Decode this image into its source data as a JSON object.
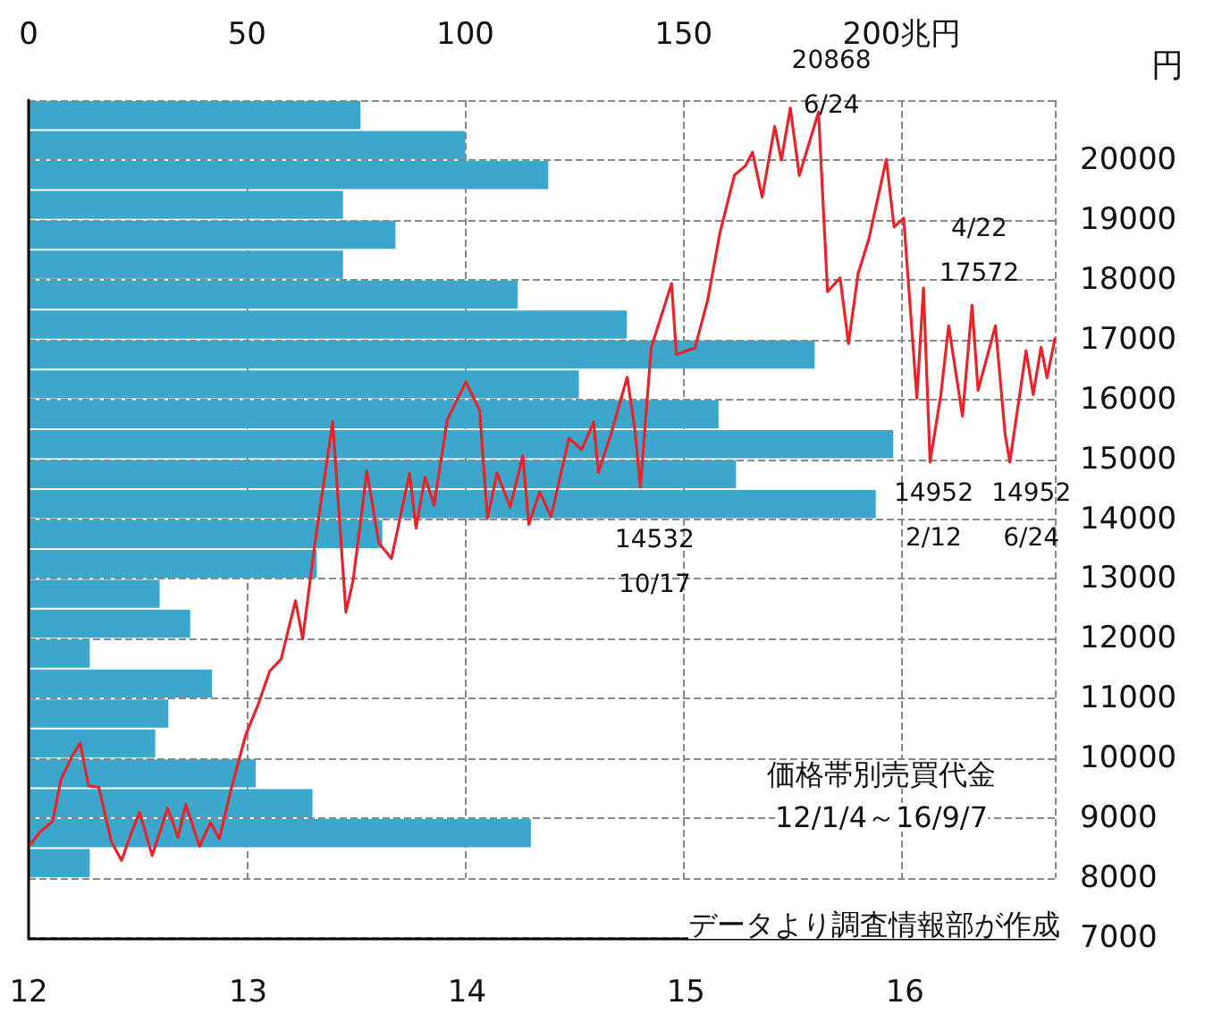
{
  "chart_data": [
    {
      "type": "bar",
      "orientation": "horizontal",
      "grid": "x",
      "tick_labels": "x",
      "categories": [
        null,
        null,
        null,
        null,
        null,
        null,
        null,
        null,
        null,
        null,
        null,
        null,
        null,
        null,
        null,
        null,
        null,
        null,
        null,
        null,
        null,
        null,
        null,
        null,
        null,
        null
      ],
      "xlim": [
        0,
        235
      ],
      "xticks": [
        0,
        50,
        100,
        150,
        {
          "value": 200,
          "label": "200兆円"
        }
      ],
      "series": [
        {
          "color": "#3ba7cc",
          "values": [
            76,
            100,
            119,
            72,
            84,
            72,
            112,
            137,
            180,
            126,
            158,
            198,
            162,
            194,
            81,
            66,
            30,
            37,
            14,
            42,
            32,
            29,
            52,
            65,
            115,
            14
          ]
        }
      ]
    },
    {
      "type": "line",
      "grid": "y",
      "marker": "none",
      "line_style": "solid",
      "ylabel": "円",
      "xlim": [
        "2012-01-01",
        "2016-09-07"
      ],
      "xticks": [
        {
          "value": "2012-01-01",
          "label": "12"
        },
        {
          "value": "2013-01-01",
          "label": "13"
        },
        {
          "value": "2014-01-01",
          "label": "14"
        },
        {
          "value": "2015-01-01",
          "label": "15"
        },
        {
          "value": "2016-01-01",
          "label": "16"
        }
      ],
      "ylim": [
        7000,
        21000
      ],
      "yticks": [
        7000,
        8000,
        9000,
        10000,
        11000,
        12000,
        13000,
        14000,
        15000,
        16000,
        17000,
        18000,
        19000,
        20000
      ],
      "series": [
        {
          "color": "#e8242a",
          "x": [
            "2012-01-04",
            "2012-01-20",
            "2012-02-10",
            "2012-02-24",
            "2012-03-14",
            "2012-03-27",
            "2012-04-10",
            "2012-04-27",
            "2012-05-18",
            "2012-06-04",
            "2012-06-20",
            "2012-07-04",
            "2012-07-25",
            "2012-08-20",
            "2012-09-06",
            "2012-09-19",
            "2012-10-12",
            "2012-10-30",
            "2012-11-14",
            "2012-12-03",
            "2012-12-28",
            "2013-01-18",
            "2013-02-06",
            "2013-02-25",
            "2013-03-21",
            "2013-04-02",
            "2013-04-22",
            "2013-05-22",
            "2013-06-13",
            "2013-06-25",
            "2013-07-18",
            "2013-08-07",
            "2013-08-28",
            "2013-09-27",
            "2013-10-08",
            "2013-10-23",
            "2013-11-07",
            "2013-11-29",
            "2013-12-30",
            "2014-01-22",
            "2014-02-04",
            "2014-02-20",
            "2014-03-14",
            "2014-04-04",
            "2014-04-14",
            "2014-05-02",
            "2014-05-21",
            "2014-06-20",
            "2014-07-11",
            "2014-07-31",
            "2014-08-08",
            "2014-08-29",
            "2014-09-25",
            "2014-10-08",
            "2014-10-17",
            "2014-11-04",
            "2014-12-08",
            "2014-12-16",
            "2015-01-16",
            "2015-02-06",
            "2015-02-27",
            "2015-03-23",
            "2015-04-10",
            "2015-04-22",
            "2015-05-08",
            "2015-05-29",
            "2015-06-09",
            "2015-06-24",
            "2015-07-09",
            "2015-08-10",
            "2015-08-25",
            "2015-09-15",
            "2015-09-29",
            "2015-10-15",
            "2015-11-02",
            "2015-12-01",
            "2015-12-14",
            "2015-12-30",
            "2016-01-21",
            "2016-02-01",
            "2016-02-12",
            "2016-03-01",
            "2016-03-14",
            "2016-04-06",
            "2016-04-22",
            "2016-05-02",
            "2016-05-31",
            "2016-06-16",
            "2016-06-24",
            "2016-07-21",
            "2016-08-02",
            "2016-08-15",
            "2016-08-25",
            "2016-09-07"
          ],
          "values": [
            8560,
            8770,
            8950,
            9650,
            10050,
            10255,
            9540,
            9520,
            8610,
            8295,
            8750,
            9100,
            8380,
            9170,
            8680,
            9230,
            8530,
            8930,
            8660,
            9460,
            10395,
            10910,
            11460,
            11660,
            12640,
            12000,
            13570,
            15627,
            12445,
            12970,
            14800,
            13600,
            13340,
            14760,
            13850,
            14700,
            14230,
            15660,
            16291,
            15820,
            14008,
            14770,
            14200,
            15060,
            13910,
            14450,
            14040,
            15350,
            15160,
            15620,
            14780,
            15420,
            16370,
            15480,
            14532,
            16860,
            17935,
            16750,
            16860,
            17650,
            18800,
            19750,
            19900,
            20130,
            19380,
            20560,
            20000,
            20868,
            19740,
            20800,
            17800,
            18030,
            16930,
            18100,
            18680,
            20010,
            18880,
            19030,
            16020,
            17860,
            14952,
            16080,
            17230,
            15720,
            17572,
            16150,
            17230,
            15430,
            14952,
            16810,
            16080,
            16870,
            16360,
            17010
          ]
        }
      ],
      "annotations": [
        {
          "text": "20868 6/24",
          "x": "2015-06-24",
          "y": 20868
        },
        {
          "text": "4/22 17572",
          "x": "2016-04-22",
          "y": 17572
        },
        {
          "text": "14952 2/12",
          "x": "2016-02-12",
          "y": 14952
        },
        {
          "text": "14952 6/24",
          "x": "2016-06-24",
          "y": 14952
        },
        {
          "text": "14532 10/17",
          "x": "2014-10-17",
          "y": 14532
        },
        "価格帯別売買代金",
        "12/1/4～16/9/7",
        "データより調査情報部が作成"
      ]
    }
  ]
}
